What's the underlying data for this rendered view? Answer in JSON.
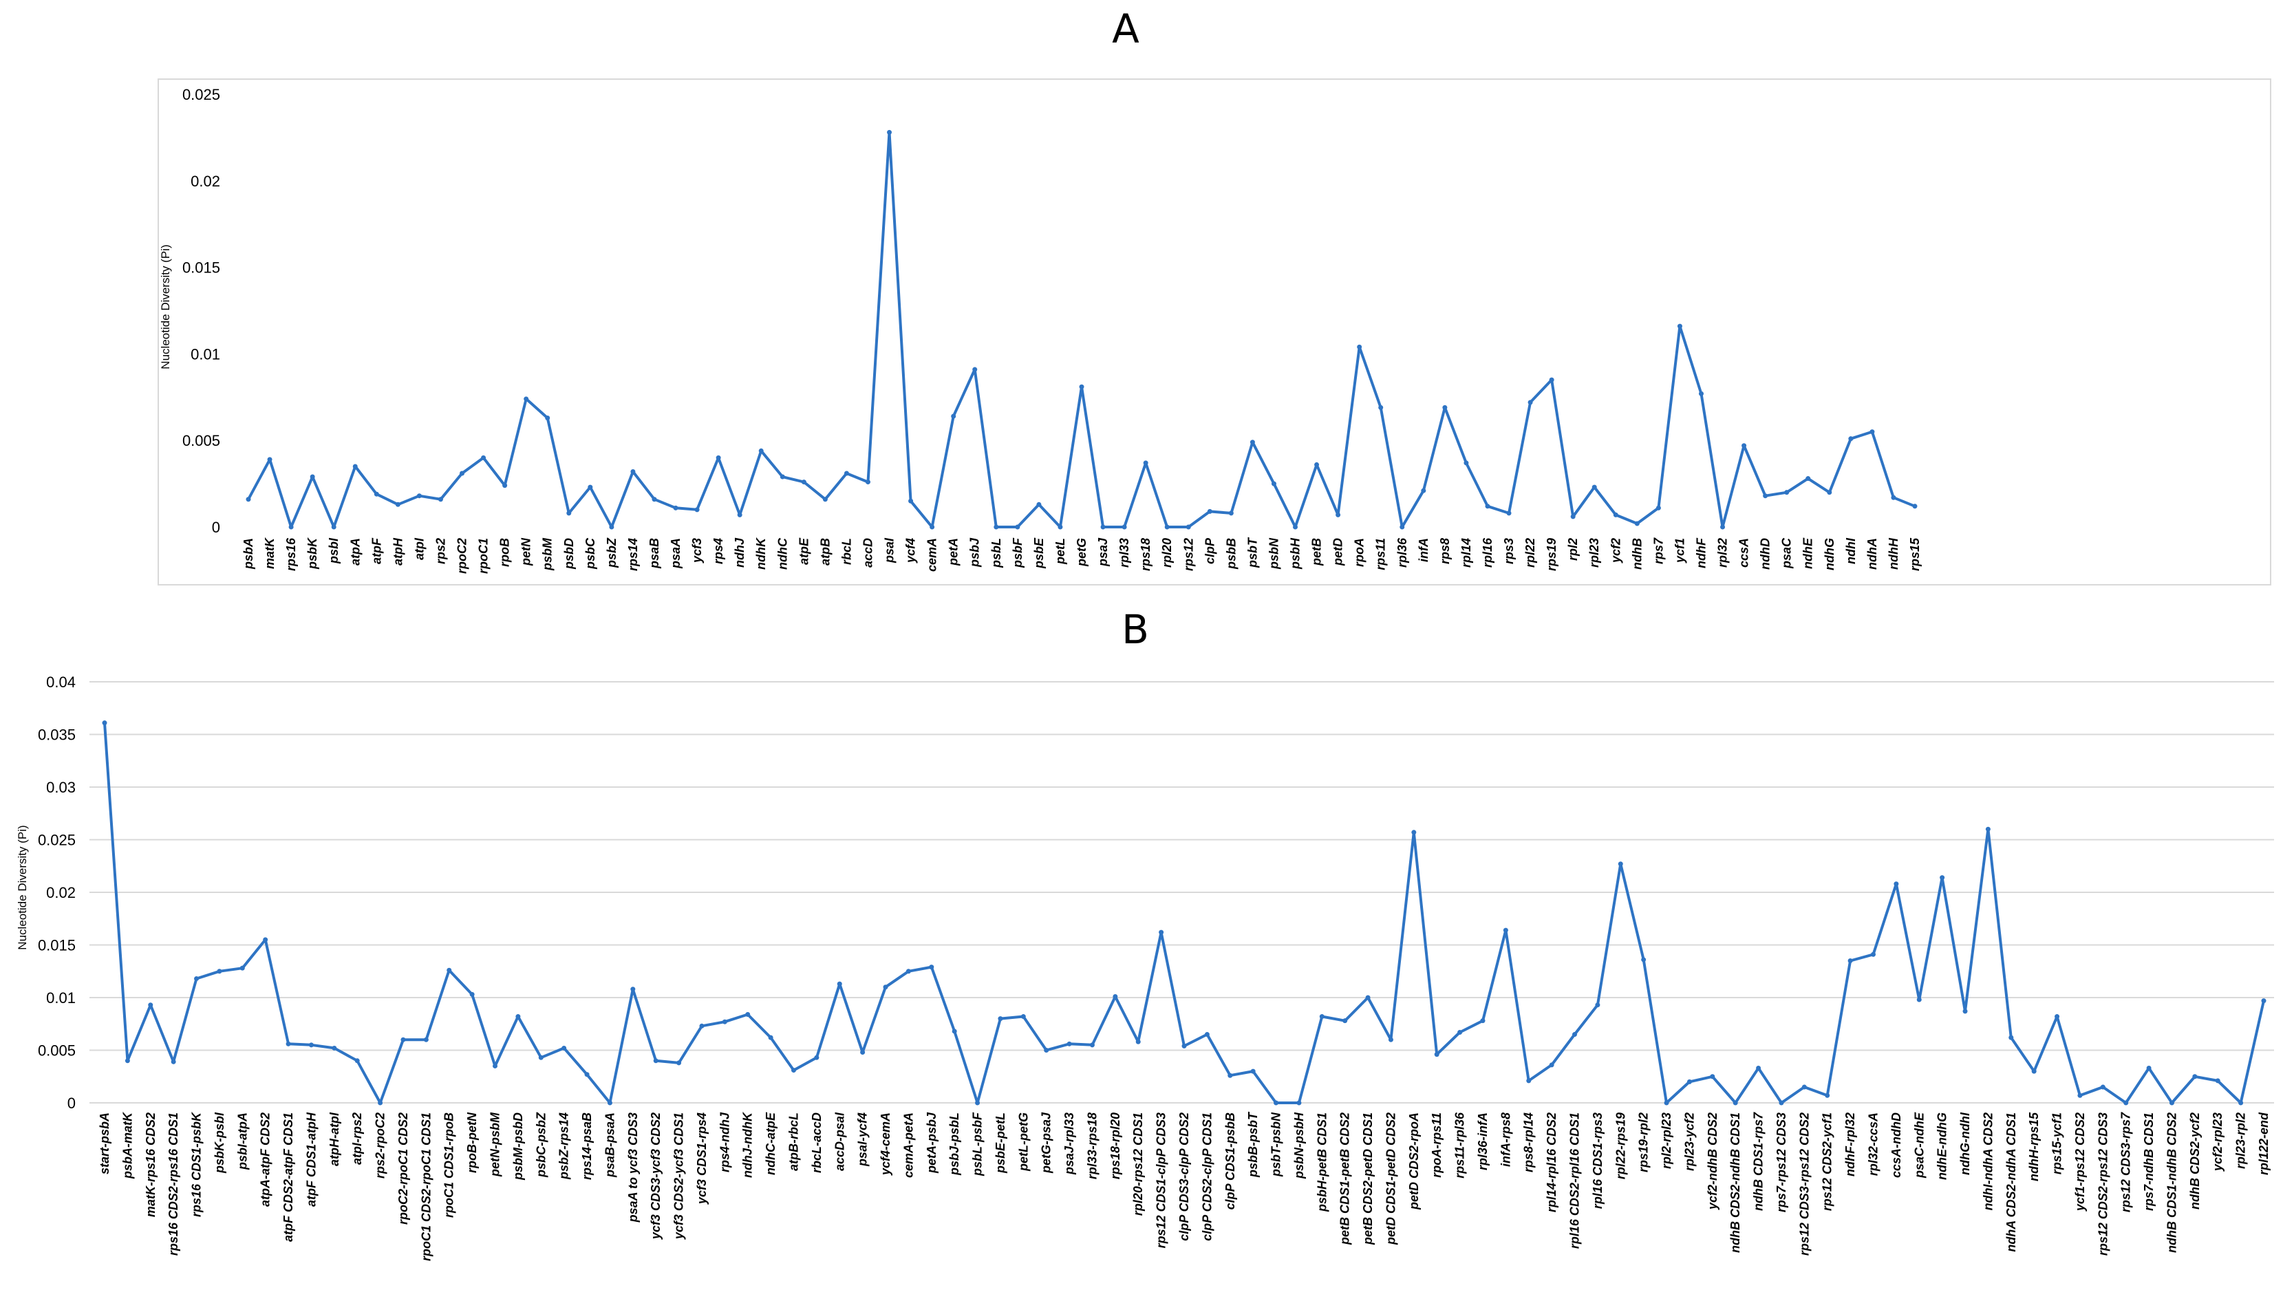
{
  "chart_data": [
    {
      "id": "A",
      "type": "line",
      "title": "A",
      "xlabel": "",
      "ylabel": "Nucleotide Diversity (Pi)",
      "ylim": [
        0,
        0.025
      ],
      "yticks": [
        0,
        0.005,
        0.01,
        0.015,
        0.02,
        0.025
      ],
      "ytick_labels": [
        "0",
        "0.005",
        "0.01",
        "0.015",
        "0.02",
        "0.025"
      ],
      "grid": false,
      "color": "#2e74c4",
      "categories": [
        "psbA",
        "matK",
        "rps16",
        "psbK",
        "psbI",
        "atpA",
        "atpF",
        "atpH",
        "atpI",
        "rps2",
        "rpoC2",
        "rpoC1",
        "rpoB",
        "petN",
        "psbM",
        "psbD",
        "psbC",
        "psbZ",
        "rps14",
        "psaB",
        "psaA",
        "ycf3",
        "rps4",
        "ndhJ",
        "ndhK",
        "ndhC",
        "atpE",
        "atpB",
        "rbcL",
        "accD",
        "psaI",
        "ycf4",
        "cemA",
        "petA",
        "psbJ",
        "psbL",
        "psbF",
        "psbE",
        "petL",
        "petG",
        "psaJ",
        "rpl33",
        "rps18",
        "rpl20",
        "rps12",
        "clpP",
        "psbB",
        "psbT",
        "psbN",
        "psbH",
        "petB",
        "petD",
        "rpoA",
        "rps11",
        "rpl36",
        "infA",
        "rps8",
        "rpl14",
        "rpl16",
        "rps3",
        "rpl22",
        "rps19",
        "rpl2",
        "rpl23",
        "ycf2",
        "ndhB",
        "rps7",
        "ycf1",
        "ndhF",
        "rpl32",
        "ccsA",
        "ndhD",
        "psaC",
        "ndhE",
        "ndhG",
        "ndhI",
        "ndhA",
        "ndhH",
        "rps15"
      ],
      "values": [
        0.0016,
        0.0039,
        0.0,
        0.0029,
        0.0,
        0.0035,
        0.0019,
        0.0013,
        0.0018,
        0.0016,
        0.0031,
        0.004,
        0.0024,
        0.0074,
        0.0063,
        0.0008,
        0.0023,
        0.0,
        0.0032,
        0.0016,
        0.0011,
        0.001,
        0.004,
        0.0007,
        0.0044,
        0.0029,
        0.0026,
        0.0016,
        0.0031,
        0.0026,
        0.0228,
        0.0015,
        0.0,
        0.0064,
        0.0091,
        0.0,
        0.0,
        0.0013,
        0.0,
        0.0081,
        0.0,
        0.0,
        0.0037,
        0.0,
        0.0,
        0.0009,
        0.0008,
        0.0049,
        0.0025,
        0.0,
        0.0036,
        0.0007,
        0.0104,
        0.0069,
        0.0,
        0.0021,
        0.0069,
        0.0037,
        0.0012,
        0.0008,
        0.0072,
        0.0085,
        0.0006,
        0.0023,
        0.0007,
        0.0002,
        0.0011,
        0.0116,
        0.0077,
        0.0,
        0.0047,
        0.0018,
        0.002,
        0.0028,
        0.002,
        0.0051,
        0.0055,
        0.0017,
        0.0012
      ]
    },
    {
      "id": "B",
      "type": "line",
      "title": "B",
      "xlabel": "",
      "ylabel": "Nucleotide Diversity (Pi)",
      "ylim": [
        0,
        0.04
      ],
      "yticks": [
        0,
        0.005,
        0.01,
        0.015,
        0.02,
        0.025,
        0.03,
        0.035,
        0.04
      ],
      "ytick_labels": [
        "0",
        "0.005",
        "0.01",
        "0.015",
        "0.02",
        "0.025",
        "0.03",
        "0.035",
        "0.04"
      ],
      "grid": true,
      "color": "#2e74c4",
      "categories": [
        "start-psbA",
        "psbA-matK",
        "matK-rps16 CDS2",
        "rps16 CDS2-rps16 CDS1",
        "rps16 CDS1-psbK",
        "psbK-psbI",
        "psbI-atpA",
        "atpA-atpF CDS2",
        "atpF CDS2-atpF CDS1",
        "atpF CDS1-atpH",
        "atpH-atpI",
        "atpI-rps2",
        "rps2-rpoC2",
        "rpoC2-rpoC1 CDS2",
        "rpoC1 CDS2-rpoC1 CDS1",
        "rpoC1 CDS1-rpoB",
        "rpoB-petN",
        "petN-psbM",
        "psbM-psbD",
        "psbC-psbZ",
        "psbZ-rps14",
        "rps14-psaB",
        "psaB-psaA",
        "psaA to ycf3 CDS3",
        "ycf3 CDS3-ycf3 CDS2",
        "ycf3 CDS2-ycf3 CDS1",
        "ycf3 CDS1-rps4",
        "rps4-ndhJ",
        "ndhJ-ndhK",
        "ndhC-atpE",
        "atpB-rbcL",
        "rbcL-accD",
        "accD-psaI",
        "psaI-ycf4",
        "ycf4-cemA",
        "cemA-petA",
        "petA-psbJ",
        "psbJ-psbL",
        "psbL-psbF",
        "psbE-petL",
        "petL-petG",
        "petG-psaJ",
        "psaJ-rpl33",
        "rpl33-rps18",
        "rps18-rpl20",
        "rpl20-rps12 CDS1",
        "rps12 CDS1-clpP CDS3",
        "clpP CDS3-clpP CDS2",
        "clpP CDS2-clpP CDS1",
        "clpP CDS1-psbB",
        "psbB-psbT",
        "psbT-psbN",
        "psbN-psbH",
        "psbH-petB CDS1",
        "petB CDS1-petB CDS2",
        "petB CDS2-petD CDS1",
        "petD CDS1-petD CDS2",
        "petD CDS2-rpoA",
        "rpoA-rps11",
        "rps11-rpl36",
        "rpl36-infA",
        "infA-rps8",
        "rps8-rpl14",
        "rpl14-rpl16 CDS2",
        "rpl16 CDS2-rpl16 CDS1",
        "rpl16 CDS1-rps3",
        "rpl22-rps19",
        "rps19-rpl2",
        "rpl2-rpl23",
        "rpl23-ycf2",
        "ycf2-ndhB CDS2",
        "ndhB CDS2-ndhB CDS1",
        "ndhB CDS1-rps7",
        "rps7-rps12 CDS3",
        "rps12 CDS3-rps12 CDS2",
        "rps12 CDS2-ycf1",
        "ndhF-rpl32",
        "rpl32-ccsA",
        "ccsA-ndhD",
        "psaC-ndhE",
        "ndhE-ndhG",
        "ndhG-ndhI",
        "ndhI-ndhA CDS2",
        "ndhA CDS2-ndhA CDS1",
        "ndhH-rps15",
        "rps15-ycf1",
        "ycf1-rps12 CDS2",
        "rps12 CDS2-rps12 CDS3",
        "rps12 CDS3-rps7",
        "rps7-ndhB CDS1",
        "ndhB CDS1-ndhB CDS2",
        "ndhB CDS2-ycf2",
        "ycf2-rpl23",
        "rpl23-rpl2",
        "rpl122-end"
      ],
      "values": [
        0.0361,
        0.004,
        0.0093,
        0.0039,
        0.0118,
        0.0125,
        0.0128,
        0.0155,
        0.0056,
        0.0055,
        0.0052,
        0.004,
        0.0,
        0.006,
        0.006,
        0.0126,
        0.0103,
        0.0035,
        0.0082,
        0.0043,
        0.0052,
        0.0027,
        0.0,
        0.0108,
        0.004,
        0.0038,
        0.0073,
        0.0077,
        0.0084,
        0.0062,
        0.0031,
        0.0043,
        0.0113,
        0.0048,
        0.011,
        0.0125,
        0.0129,
        0.0068,
        0.0,
        0.008,
        0.0082,
        0.005,
        0.0056,
        0.0055,
        0.0101,
        0.0058,
        0.0162,
        0.0054,
        0.0065,
        0.0026,
        0.003,
        0.0,
        0.0,
        0.0082,
        0.0078,
        0.01,
        0.006,
        0.0257,
        0.0046,
        0.0067,
        0.0078,
        0.0164,
        0.0021,
        0.0036,
        0.0065,
        0.0093,
        0.0227,
        0.0136,
        0.0,
        0.002,
        0.0025,
        0.0,
        0.0033,
        0.0,
        0.0015,
        0.0007,
        0.0135,
        0.0141,
        0.0208,
        0.0098,
        0.0214,
        0.0087,
        0.026,
        0.0062,
        0.003,
        0.0082,
        0.0007,
        0.0015,
        0.0,
        0.0033,
        0.0,
        0.0025,
        0.0021,
        0.0,
        0.0097
      ]
    }
  ]
}
